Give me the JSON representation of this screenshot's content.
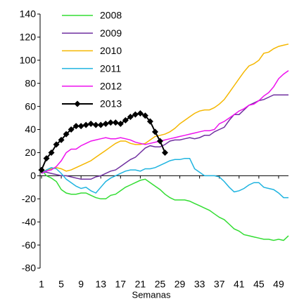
{
  "chart_data": {
    "type": "line",
    "x_label": "Semanas",
    "x": [
      1,
      2,
      3,
      4,
      5,
      6,
      7,
      8,
      9,
      10,
      11,
      12,
      13,
      14,
      15,
      16,
      17,
      18,
      19,
      20,
      21,
      22,
      23,
      24,
      25,
      26,
      27,
      28,
      29,
      30,
      31,
      32,
      33,
      34,
      35,
      36,
      37,
      38,
      39,
      40,
      41,
      42,
      43,
      44,
      45,
      46,
      47,
      48,
      49,
      50,
      51
    ],
    "xlim": [
      1,
      51
    ],
    "xticks": [
      1,
      5,
      9,
      13,
      17,
      21,
      25,
      29,
      33,
      37,
      41,
      45,
      49
    ],
    "ylim": [
      -80,
      140
    ],
    "yticks": [
      -80,
      -60,
      -40,
      -20,
      0,
      20,
      40,
      60,
      80,
      100,
      120,
      140
    ],
    "legend": "upper left",
    "series": [
      {
        "name": "2008",
        "color": "#33dd33",
        "values": [
          5,
          0,
          -2,
          -5,
          -12,
          -15,
          -16,
          -16,
          -15,
          -15,
          -17,
          -19,
          -20,
          -20,
          -17,
          -16,
          -13,
          -10,
          -8,
          -6,
          -4,
          -3,
          -6,
          -9,
          -12,
          -16,
          -19,
          -21,
          -21,
          -21,
          -22,
          -24,
          -26,
          -28,
          -30,
          -33,
          -36,
          -38,
          -42,
          -46,
          -48,
          -51,
          -52,
          -53,
          -54,
          -55,
          -55,
          -56,
          -55,
          -56,
          -52
        ]
      },
      {
        "name": "2009",
        "color": "#7030a0",
        "values": [
          3,
          3,
          2,
          1,
          0,
          0,
          -1,
          -2,
          -3,
          -3,
          -3,
          -1,
          0,
          2,
          4,
          5,
          8,
          11,
          14,
          16,
          20,
          24,
          26,
          25,
          25,
          27,
          30,
          31,
          31,
          32,
          33,
          32,
          33,
          35,
          35,
          38,
          40,
          42,
          48,
          53,
          53,
          57,
          61,
          63,
          65,
          66,
          68,
          70,
          70,
          70,
          70
        ]
      },
      {
        "name": "2010",
        "color": "#f5b700",
        "values": [
          3,
          5,
          6,
          7,
          6,
          4,
          5,
          7,
          9,
          11,
          13,
          16,
          19,
          22,
          25,
          28,
          30,
          30,
          28,
          27,
          27,
          28,
          31,
          34,
          35,
          36,
          38,
          41,
          45,
          48,
          51,
          54,
          56,
          57,
          57,
          59,
          62,
          66,
          72,
          78,
          84,
          90,
          95,
          97,
          100,
          106,
          107,
          110,
          112,
          113,
          114
        ]
      },
      {
        "name": "2011",
        "color": "#1fb4e0",
        "values": [
          2,
          5,
          7,
          6,
          2,
          -3,
          -6,
          -9,
          -11,
          -10,
          -13,
          -15,
          -10,
          -5,
          -2,
          0,
          2,
          4,
          5,
          5,
          4,
          6,
          6,
          7,
          9,
          11,
          13,
          14,
          14,
          15,
          15,
          6,
          3,
          0,
          0,
          0,
          -1,
          -5,
          -10,
          -14,
          -13,
          -11,
          -8,
          -6,
          -6,
          -10,
          -11,
          -12,
          -15,
          -19,
          -19
        ]
      },
      {
        "name": "2012",
        "color": "#ee11ee",
        "values": [
          2,
          4,
          5,
          8,
          13,
          20,
          23,
          23,
          26,
          28,
          30,
          31,
          32,
          33,
          32,
          32,
          33,
          32,
          31,
          29,
          28,
          27,
          28,
          29,
          30,
          31,
          32,
          33,
          34,
          35,
          36,
          37,
          38,
          39,
          39,
          40,
          45,
          47,
          50,
          53,
          56,
          58,
          61,
          62,
          65,
          69,
          72,
          77,
          84,
          88,
          91
        ]
      },
      {
        "name": "2013",
        "color": "#000000",
        "marker": "diamond",
        "values": [
          5,
          15,
          20,
          27,
          31,
          36,
          40,
          43,
          43,
          44,
          45,
          44,
          44,
          45,
          46,
          46,
          45,
          48,
          51,
          53,
          54,
          52,
          47,
          38,
          30,
          20,
          null,
          null,
          null,
          null,
          null,
          null,
          null,
          null,
          null,
          null,
          null,
          null,
          null,
          null,
          null,
          null,
          null,
          null,
          null,
          null,
          null,
          null,
          null,
          null,
          null
        ]
      }
    ]
  }
}
